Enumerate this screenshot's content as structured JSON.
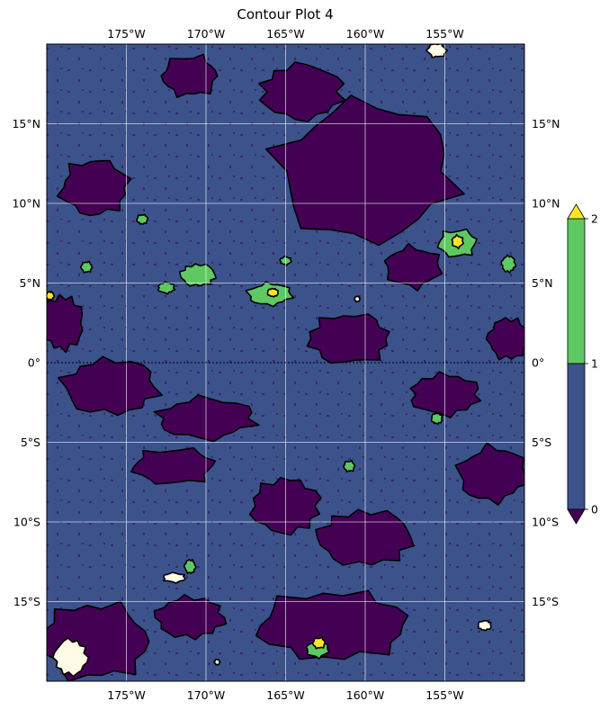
{
  "chart_data": {
    "type": "contour",
    "title": "Contour Plot 4",
    "xlabel": "",
    "ylabel": "",
    "x_range_deg": [
      -180,
      -150
    ],
    "y_range_deg": [
      -20,
      20
    ],
    "x_ticks": [
      -175,
      -170,
      -165,
      -160,
      -155
    ],
    "y_ticks": [
      -15,
      -10,
      -5,
      0,
      5,
      10,
      15
    ],
    "x_tick_labels": [
      "175°W",
      "170°W",
      "165°W",
      "160°W",
      "155°W"
    ],
    "y_tick_labels": [
      "15°S",
      "10°S",
      "5°S",
      "0°",
      "5°N",
      "10°N",
      "15°N"
    ],
    "grid": true,
    "contour_levels": [
      0,
      1,
      2
    ],
    "level_colors": {
      "below_0": "#440154",
      "0_to_1": "#3b528b",
      "1_to_2": "#5ec962",
      "above_2": "#fde725",
      "highest": "#fffbe6"
    },
    "colorbar": {
      "ticks": [
        "0",
        "1",
        "2"
      ],
      "extend": "both",
      "location": "right"
    },
    "features": {
      "purple_regions": [
        {
          "cx": -160,
          "cy": 12,
          "rx": 6.5,
          "ry": 5
        },
        {
          "cx": -164,
          "cy": 17,
          "rx": 3,
          "ry": 2
        },
        {
          "cx": -177,
          "cy": 11,
          "rx": 2.5,
          "ry": 2
        },
        {
          "cx": -161,
          "cy": 1.5,
          "rx": 3,
          "ry": 1.8
        },
        {
          "cx": -176,
          "cy": -1.5,
          "rx": 3.5,
          "ry": 2
        },
        {
          "cx": -170,
          "cy": -3.5,
          "rx": 3.5,
          "ry": 1.5
        },
        {
          "cx": -165,
          "cy": -9,
          "rx": 2.5,
          "ry": 2
        },
        {
          "cx": -172,
          "cy": -6.5,
          "rx": 3,
          "ry": 1.3
        },
        {
          "cx": -160,
          "cy": -11,
          "rx": 3.5,
          "ry": 2
        },
        {
          "cx": -152,
          "cy": -7,
          "rx": 2.5,
          "ry": 2
        },
        {
          "cx": -155,
          "cy": -2,
          "rx": 2.5,
          "ry": 1.5
        },
        {
          "cx": -162,
          "cy": -16.5,
          "rx": 5.5,
          "ry": 2.5
        },
        {
          "cx": -177,
          "cy": -17.5,
          "rx": 4,
          "ry": 2.8
        },
        {
          "cx": -171,
          "cy": -16,
          "rx": 2.5,
          "ry": 1.5
        },
        {
          "cx": -157,
          "cy": 6,
          "rx": 2,
          "ry": 1.5
        },
        {
          "cx": -179,
          "cy": 2.5,
          "rx": 1.5,
          "ry": 2
        },
        {
          "cx": -171,
          "cy": 18,
          "rx": 2,
          "ry": 1.5
        },
        {
          "cx": -151,
          "cy": 1.5,
          "rx": 1.5,
          "ry": 1.5
        }
      ],
      "green_regions": [
        {
          "cx": -154.2,
          "cy": 7.5,
          "rx": 1.4,
          "ry": 1.0
        },
        {
          "cx": -170.5,
          "cy": 5.5,
          "rx": 1.3,
          "ry": 0.8
        },
        {
          "cx": -166,
          "cy": 4.3,
          "rx": 1.6,
          "ry": 0.8
        },
        {
          "cx": -172.5,
          "cy": 4.7,
          "rx": 0.6,
          "ry": 0.4
        },
        {
          "cx": -174,
          "cy": 9,
          "rx": 0.4,
          "ry": 0.35
        },
        {
          "cx": -177.5,
          "cy": 6,
          "rx": 0.4,
          "ry": 0.4
        },
        {
          "cx": -151,
          "cy": 6.2,
          "rx": 0.5,
          "ry": 0.6
        },
        {
          "cx": -163,
          "cy": -18,
          "rx": 0.8,
          "ry": 0.6
        },
        {
          "cx": -155.5,
          "cy": -3.5,
          "rx": 0.4,
          "ry": 0.4
        },
        {
          "cx": -161,
          "cy": -6.5,
          "rx": 0.4,
          "ry": 0.4
        },
        {
          "cx": -171,
          "cy": -12.8,
          "rx": 0.4,
          "ry": 0.5
        },
        {
          "cx": -165,
          "cy": 6.4,
          "rx": 0.4,
          "ry": 0.3
        }
      ],
      "yellow_regions": [
        {
          "cx": -154.2,
          "cy": 7.6,
          "rx": 0.4,
          "ry": 0.45
        },
        {
          "cx": -165.8,
          "cy": 4.4,
          "rx": 0.4,
          "ry": 0.3
        },
        {
          "cx": -162.9,
          "cy": -17.6,
          "rx": 0.45,
          "ry": 0.4
        },
        {
          "cx": -179.8,
          "cy": 4.2,
          "rx": 0.3,
          "ry": 0.3
        }
      ],
      "white_regions": [
        {
          "cx": -155.5,
          "cy": 19.6,
          "rx": 0.7,
          "ry": 0.5
        },
        {
          "cx": -178.5,
          "cy": -18.5,
          "rx": 1.2,
          "ry": 1.3
        },
        {
          "cx": -172,
          "cy": -13.5,
          "rx": 0.8,
          "ry": 0.35
        },
        {
          "cx": -152.5,
          "cy": -16.5,
          "rx": 0.5,
          "ry": 0.35
        },
        {
          "cx": -160.5,
          "cy": 4.0,
          "rx": 0.2,
          "ry": 0.2
        },
        {
          "cx": -169.3,
          "cy": -18.8,
          "rx": 0.2,
          "ry": 0.2
        }
      ]
    }
  }
}
